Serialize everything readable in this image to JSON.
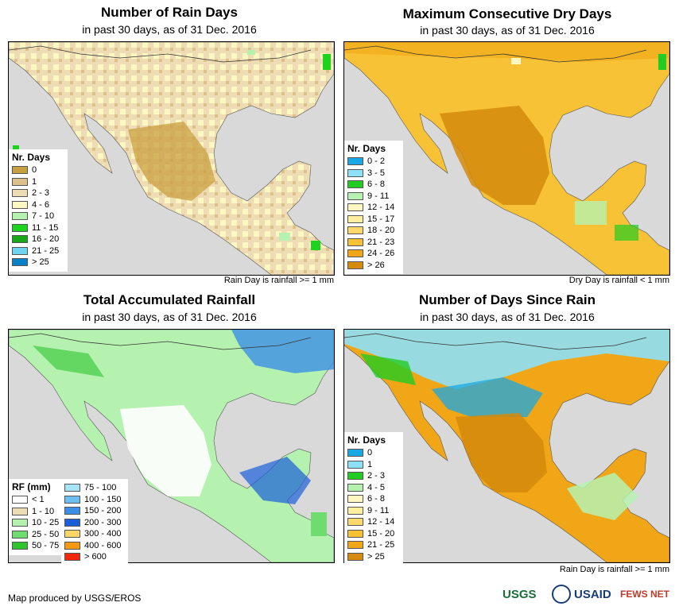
{
  "panels": [
    {
      "title": "Number of Rain Days",
      "subtitle": "in past 30 days, as of 31 Dec. 2016",
      "legend_title": "Nr. Days",
      "legend": [
        {
          "label": "0",
          "color": "#c9a040"
        },
        {
          "label": "1",
          "color": "#ddc08a"
        },
        {
          "label": "2 - 3",
          "color": "#eedcb4"
        },
        {
          "label": "4 - 6",
          "color": "#fdf7c2"
        },
        {
          "label": "7 - 10",
          "color": "#b5f2b0"
        },
        {
          "label": "11 - 15",
          "color": "#1ed31e"
        },
        {
          "label": "16 - 20",
          "color": "#16a816"
        },
        {
          "label": "21 - 25",
          "color": "#6fd4f0"
        },
        {
          "label": "> 25",
          "color": "#0a80c8"
        }
      ],
      "note": "Rain Day is rainfall >= 1 mm"
    },
    {
      "title": "Maximum Consecutive Dry Days",
      "subtitle": "in past 30 days, as of 31 Dec. 2016",
      "legend_title": "Nr. Days",
      "legend": [
        {
          "label": "0 - 2",
          "color": "#19a8e6"
        },
        {
          "label": "3 - 5",
          "color": "#8de0f5"
        },
        {
          "label": "6 - 8",
          "color": "#22cc22"
        },
        {
          "label": "9 - 11",
          "color": "#b5f2b0"
        },
        {
          "label": "12 - 14",
          "color": "#fdf7c2"
        },
        {
          "label": "15 - 17",
          "color": "#fdeea0"
        },
        {
          "label": "18 - 20",
          "color": "#fcd96a"
        },
        {
          "label": "21 - 23",
          "color": "#f7c235"
        },
        {
          "label": "24 - 26",
          "color": "#f0a616"
        },
        {
          "label": "> 26",
          "color": "#d48a0a"
        }
      ],
      "note": "Dry Day is rainfall < 1 mm"
    },
    {
      "title": "Total Accumulated Rainfall",
      "subtitle": "in past 30 days, as of 31 Dec. 2016",
      "legend_title": "RF (mm)",
      "legend": [
        {
          "label": "< 1",
          "color": "#ffffff"
        },
        {
          "label": "1 - 10",
          "color": "#eedcb4"
        },
        {
          "label": "10 - 25",
          "color": "#b5f2b0"
        },
        {
          "label": "25 - 50",
          "color": "#6fdc6f"
        },
        {
          "label": "50 - 75",
          "color": "#2ec42e"
        }
      ],
      "legend2": [
        {
          "label": "75 - 100",
          "color": "#a8e4f8"
        },
        {
          "label": "100 - 150",
          "color": "#6cbff0"
        },
        {
          "label": "150 - 200",
          "color": "#3c8fe6"
        },
        {
          "label": "200 - 300",
          "color": "#1a5fd8"
        },
        {
          "label": "300 - 400",
          "color": "#fdd66a"
        },
        {
          "label": "400 - 600",
          "color": "#f59a10"
        },
        {
          "label": "> 600",
          "color": "#f02a0a"
        }
      ],
      "note": ""
    },
    {
      "title": "Number of Days Since Rain",
      "subtitle": "in past 30 days, as of 31 Dec. 2016",
      "legend_title": "Nr. Days",
      "legend": [
        {
          "label": "0",
          "color": "#19a8e6"
        },
        {
          "label": "1",
          "color": "#8de0f5"
        },
        {
          "label": "2 - 3",
          "color": "#22cc22"
        },
        {
          "label": "4 - 5",
          "color": "#b5f2b0"
        },
        {
          "label": "6 - 8",
          "color": "#fdf7c2"
        },
        {
          "label": "9 - 11",
          "color": "#fdeea0"
        },
        {
          "label": "12 - 14",
          "color": "#fcd96a"
        },
        {
          "label": "15 - 20",
          "color": "#f7c235"
        },
        {
          "label": "21 - 25",
          "color": "#f0a616"
        },
        {
          "label": "> 25",
          "color": "#d48a0a"
        }
      ],
      "note": "Rain Day is rainfall >= 1 mm"
    }
  ],
  "footer": {
    "credit": "Map produced by USGS/EROS",
    "logos": [
      "USGS",
      "USAID",
      "FEWS NET"
    ]
  },
  "colors": {
    "land_rain_days": "#eedcb4",
    "land_dry_days": "#f7c235",
    "land_rainfall": "#b5f2b0",
    "land_since_rain": "#f0a616",
    "ocean": "#d9d9d9"
  }
}
